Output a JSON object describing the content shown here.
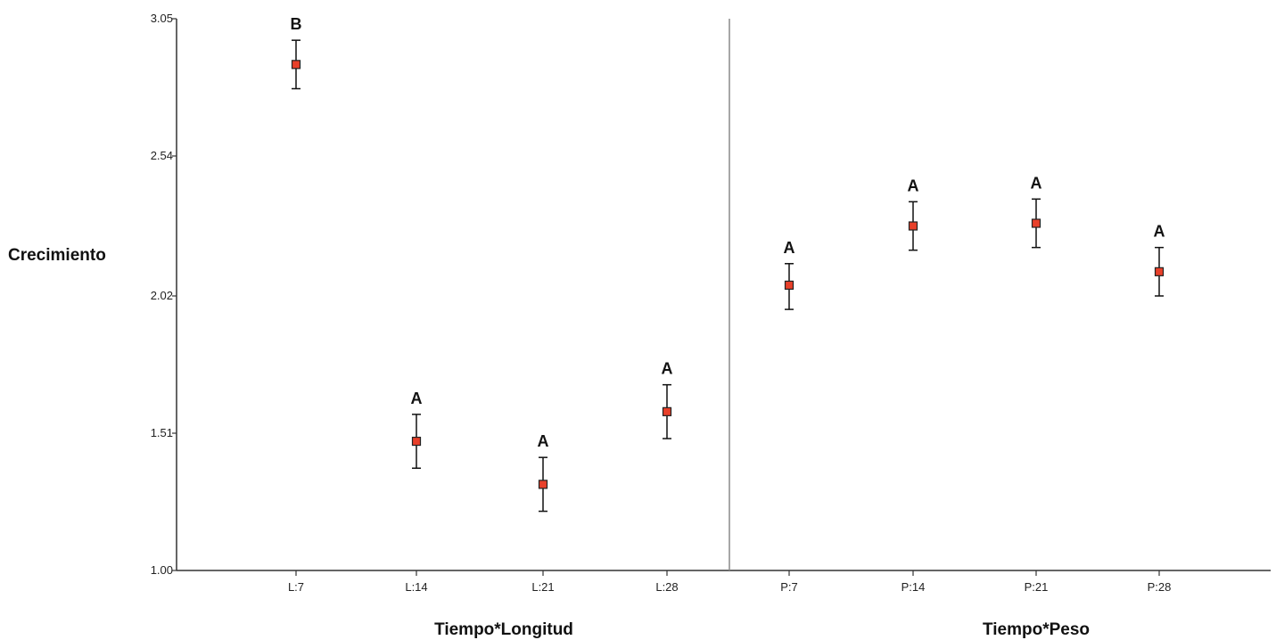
{
  "chart_data": {
    "type": "scatter",
    "ylabel": "Crecimiento",
    "ylim": [
      1.0,
      3.05
    ],
    "yticks": [
      "1.00",
      "1.51",
      "2.02",
      "2.54",
      "3.05"
    ],
    "grid": false,
    "panels": [
      {
        "xlabel": "Tiempo*Longitud",
        "categories": [
          "L:7",
          "L:14",
          "L:21",
          "L:28"
        ],
        "values": [
          2.88,
          1.48,
          1.32,
          1.59
        ],
        "error_low": [
          2.79,
          1.38,
          1.22,
          1.49
        ],
        "error_high": [
          2.97,
          1.58,
          1.42,
          1.69
        ],
        "letters": [
          "B",
          "A",
          "A",
          "A"
        ]
      },
      {
        "xlabel": "Tiempo*Peso",
        "categories": [
          "P:7",
          "P:14",
          "P:21",
          "P:28"
        ],
        "values": [
          2.06,
          2.28,
          2.29,
          2.11
        ],
        "error_low": [
          1.97,
          2.19,
          2.2,
          2.02
        ],
        "error_high": [
          2.14,
          2.37,
          2.38,
          2.2
        ],
        "letters": [
          "A",
          "A",
          "A",
          "A"
        ]
      }
    ],
    "colors": {
      "marker": "#e8402a",
      "marker_edge": "#222222",
      "axis": "#333333",
      "divider": "#8a8a8a"
    }
  }
}
